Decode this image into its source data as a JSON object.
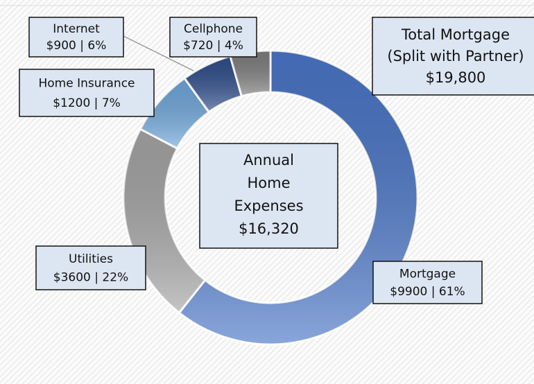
{
  "chart_data": {
    "type": "donut",
    "categories": [
      "Mortgage",
      "Utilities",
      "Home Insurance",
      "Internet",
      "Cellphone"
    ],
    "values": [
      9900,
      3600,
      1200,
      900,
      720
    ],
    "value_labels": [
      "$9900 | 61%",
      "$3600 | 22%",
      "$1200 | 7%",
      "$900 | 6%",
      "$720 | 4%"
    ],
    "colors": [
      "#4a76c8",
      "#a6a6a6",
      "#6fa8dc",
      "#2f4e8c",
      "#7f7f7f"
    ],
    "center_text": [
      "Annual",
      "Home",
      "Expenses",
      "$16,320"
    ],
    "annotation": [
      "Total Mortgage",
      "(Split with Partner)",
      "$19,800"
    ]
  }
}
